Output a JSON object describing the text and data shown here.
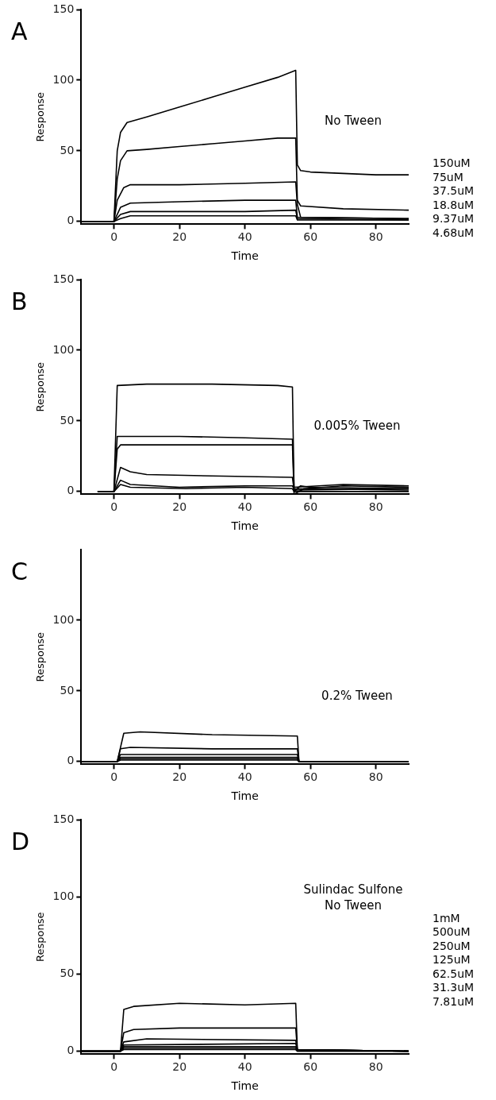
{
  "chart_data": [
    {
      "type": "line",
      "title": "A",
      "xlabel": "Time",
      "ylabel": "Response",
      "annotations": [
        "No Tween"
      ],
      "legend": "right",
      "xlim": [
        -10,
        90
      ],
      "ylim": [
        -2,
        150
      ],
      "xticks": [
        0,
        20,
        40,
        60,
        80
      ],
      "yticks": [
        0,
        50,
        100,
        150
      ],
      "series": [
        {
          "name": "150uM",
          "color": "#000000",
          "x": [
            -10,
            0,
            1,
            2,
            4,
            10,
            20,
            30,
            40,
            50,
            55.5,
            56,
            57,
            60,
            70,
            80,
            90
          ],
          "values": [
            0,
            0,
            50,
            63,
            70,
            74,
            81,
            88,
            95,
            102,
            107,
            40,
            36,
            35,
            34,
            33,
            33
          ]
        },
        {
          "name": "75uM",
          "color": "#000000",
          "x": [
            -10,
            0,
            1,
            2,
            4,
            10,
            20,
            30,
            40,
            50,
            55.5,
            56,
            57,
            70,
            90
          ],
          "values": [
            0,
            0,
            30,
            43,
            50,
            51,
            53,
            55,
            57,
            59,
            59,
            15,
            11,
            9,
            8
          ]
        },
        {
          "name": "37.5uM",
          "color": "#000000",
          "x": [
            -10,
            0,
            1,
            3,
            5,
            20,
            40,
            55.5,
            56,
            57,
            90
          ],
          "values": [
            0,
            0,
            15,
            24,
            26,
            26,
            27,
            28,
            12,
            3,
            2
          ]
        },
        {
          "name": "18.8uM",
          "color": "#000000",
          "x": [
            -10,
            0,
            2,
            5,
            20,
            40,
            55.5,
            56,
            90
          ],
          "values": [
            0,
            0,
            10,
            13,
            14,
            15,
            15,
            3,
            2
          ]
        },
        {
          "name": "9.37uM",
          "color": "#000000",
          "x": [
            -10,
            0,
            2,
            5,
            20,
            40,
            55.5,
            56,
            90
          ],
          "values": [
            0,
            0,
            5,
            7,
            7,
            7,
            8,
            2,
            1
          ]
        },
        {
          "name": "4.68uM",
          "color": "#000000",
          "x": [
            -10,
            0,
            2,
            5,
            20,
            40,
            55.5,
            56,
            90
          ],
          "values": [
            0,
            0,
            2,
            4,
            4,
            4,
            4,
            1,
            1
          ]
        }
      ]
    },
    {
      "type": "line",
      "title": "B",
      "xlabel": "Time",
      "ylabel": "Response",
      "annotations": [
        "0.005% Tween"
      ],
      "xlim": [
        -10,
        90
      ],
      "ylim": [
        -2,
        150
      ],
      "xticks": [
        0,
        20,
        40,
        60,
        80
      ],
      "yticks": [
        0,
        50,
        100,
        150
      ],
      "series": [
        {
          "color": "#000000",
          "x": [
            -5,
            0,
            1,
            10,
            30,
            50,
            54.5,
            55,
            57,
            60,
            90
          ],
          "values": [
            0,
            0,
            75,
            76,
            76,
            75,
            74,
            0,
            4,
            3,
            2
          ]
        },
        {
          "color": "#000000",
          "x": [
            -5,
            0,
            1,
            20,
            40,
            54.5,
            55,
            70,
            90
          ],
          "values": [
            0,
            0,
            39,
            39,
            38,
            37,
            3,
            5,
            4
          ]
        },
        {
          "color": "#000000",
          "x": [
            -5,
            0,
            1,
            2,
            20,
            54.5,
            55,
            58,
            70,
            90
          ],
          "values": [
            0,
            0,
            30,
            33,
            33,
            33,
            -2,
            2,
            4,
            3
          ]
        },
        {
          "color": "#000000",
          "x": [
            -5,
            0,
            2,
            5,
            10,
            30,
            54.5,
            55,
            90
          ],
          "values": [
            0,
            0,
            17,
            14,
            12,
            11,
            10,
            1,
            2
          ]
        },
        {
          "color": "#000000",
          "x": [
            -5,
            0,
            2,
            5,
            20,
            40,
            54.5,
            55,
            90
          ],
          "values": [
            0,
            0,
            8,
            5,
            3,
            4,
            4,
            2,
            1
          ]
        },
        {
          "color": "#000000",
          "x": [
            -5,
            0,
            2,
            5,
            22,
            40,
            54.5,
            55,
            90
          ],
          "values": [
            0,
            0,
            5,
            3,
            2,
            3,
            2,
            0,
            0
          ]
        }
      ]
    },
    {
      "type": "line",
      "title": "C",
      "xlabel": "Time",
      "ylabel": "Response",
      "annotations": [
        "0.2% Tween"
      ],
      "xlim": [
        -10,
        90
      ],
      "ylim": [
        -2,
        150
      ],
      "xticks": [
        0,
        20,
        40,
        60,
        80
      ],
      "yticks": [
        0,
        50,
        100
      ],
      "series": [
        {
          "color": "#000000",
          "x": [
            -10,
            1,
            3,
            8,
            30,
            56,
            56.5,
            90
          ],
          "values": [
            0,
            0,
            20,
            21,
            19,
            18,
            0,
            0
          ]
        },
        {
          "color": "#000000",
          "x": [
            -10,
            1,
            2,
            5,
            30,
            56,
            56.5,
            90
          ],
          "values": [
            0,
            0,
            9,
            10,
            9,
            9,
            0,
            0
          ]
        },
        {
          "color": "#000000",
          "x": [
            -10,
            1,
            2,
            30,
            56,
            56.5,
            90
          ],
          "values": [
            0,
            0,
            5,
            5,
            5,
            0,
            0
          ]
        },
        {
          "color": "#000000",
          "x": [
            -10,
            1,
            2,
            30,
            56,
            56.5,
            90
          ],
          "values": [
            0,
            0,
            3,
            3,
            3,
            0,
            0
          ]
        },
        {
          "color": "#000000",
          "x": [
            -10,
            1,
            2,
            30,
            56,
            56.5,
            90
          ],
          "values": [
            0,
            0,
            2,
            2,
            2,
            0,
            0
          ]
        },
        {
          "color": "#000000",
          "x": [
            -10,
            1,
            2,
            30,
            56,
            56.5,
            90
          ],
          "values": [
            0,
            0,
            1,
            1,
            1,
            0,
            0
          ]
        }
      ]
    },
    {
      "type": "line",
      "title": "D",
      "xlabel": "Time",
      "ylabel": "Response",
      "annotations": [
        "Sulindac Sulfone",
        "No Tween"
      ],
      "legend": "right",
      "xlim": [
        -10,
        90
      ],
      "ylim": [
        -2,
        150
      ],
      "xticks": [
        0,
        20,
        40,
        60,
        80
      ],
      "yticks": [
        0,
        50,
        100,
        150
      ],
      "series": [
        {
          "name": "1mM",
          "color": "#000000",
          "x": [
            -10,
            2,
            3,
            6,
            20,
            40,
            55.5,
            56,
            90
          ],
          "values": [
            0,
            0,
            27,
            29,
            31,
            30,
            31,
            1,
            0
          ]
        },
        {
          "name": "500uM",
          "color": "#000000",
          "x": [
            -10,
            2,
            3,
            6,
            20,
            55.5,
            56,
            90
          ],
          "values": [
            0,
            0,
            12,
            14,
            15,
            15,
            1,
            0
          ]
        },
        {
          "name": "250uM",
          "color": "#000000",
          "x": [
            -10,
            2,
            3,
            10,
            55.5,
            56,
            90
          ],
          "values": [
            0,
            0,
            6,
            8,
            7,
            1,
            0
          ]
        },
        {
          "name": "125uM",
          "color": "#000000",
          "x": [
            -10,
            2,
            3,
            55.5,
            56,
            90
          ],
          "values": [
            0,
            0,
            4,
            5,
            1,
            0
          ]
        },
        {
          "name": "62.5uM",
          "color": "#000000",
          "x": [
            -10,
            2,
            3,
            55.5,
            56,
            90
          ],
          "values": [
            0,
            0,
            3,
            3,
            1,
            0
          ]
        },
        {
          "name": "31.3uM",
          "color": "#000000",
          "x": [
            -10,
            2,
            3,
            55.5,
            56,
            90
          ],
          "values": [
            0,
            0,
            2,
            2,
            0,
            0
          ]
        },
        {
          "name": "7.81uM",
          "color": "#000000",
          "x": [
            -10,
            2,
            3,
            55.5,
            56,
            90
          ],
          "values": [
            0,
            0,
            1,
            1,
            0,
            0
          ]
        }
      ]
    }
  ]
}
